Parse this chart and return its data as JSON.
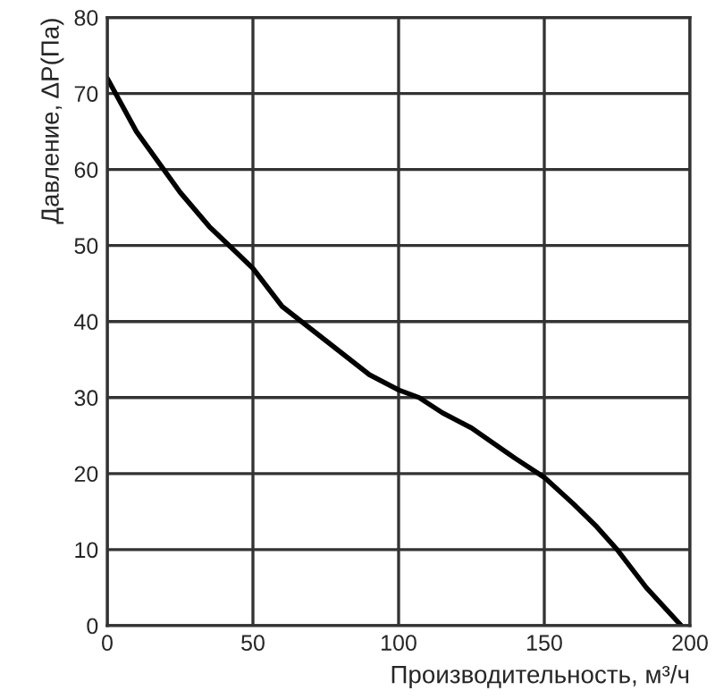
{
  "chart_data": {
    "type": "line",
    "xlabel": "Производительность, м³/ч",
    "ylabel": "Давление, ΔP(Па)",
    "xlim": [
      0,
      200
    ],
    "xticks": [
      0,
      50,
      100,
      150,
      200
    ],
    "ylim": [
      0,
      80
    ],
    "yticks": [
      0,
      10,
      20,
      30,
      40,
      50,
      60,
      70,
      80
    ],
    "grid": true,
    "series": [
      {
        "color": "#000000",
        "x": [
          0,
          10,
          25,
          35,
          50,
          60,
          75,
          90,
          100,
          107,
          115,
          125,
          140,
          150,
          160,
          168,
          175,
          185,
          197
        ],
        "values": [
          72,
          65,
          57,
          52.5,
          47,
          42,
          37.5,
          33,
          31,
          30,
          28,
          26,
          22,
          19.5,
          16,
          13,
          10,
          5,
          0
        ]
      }
    ]
  }
}
